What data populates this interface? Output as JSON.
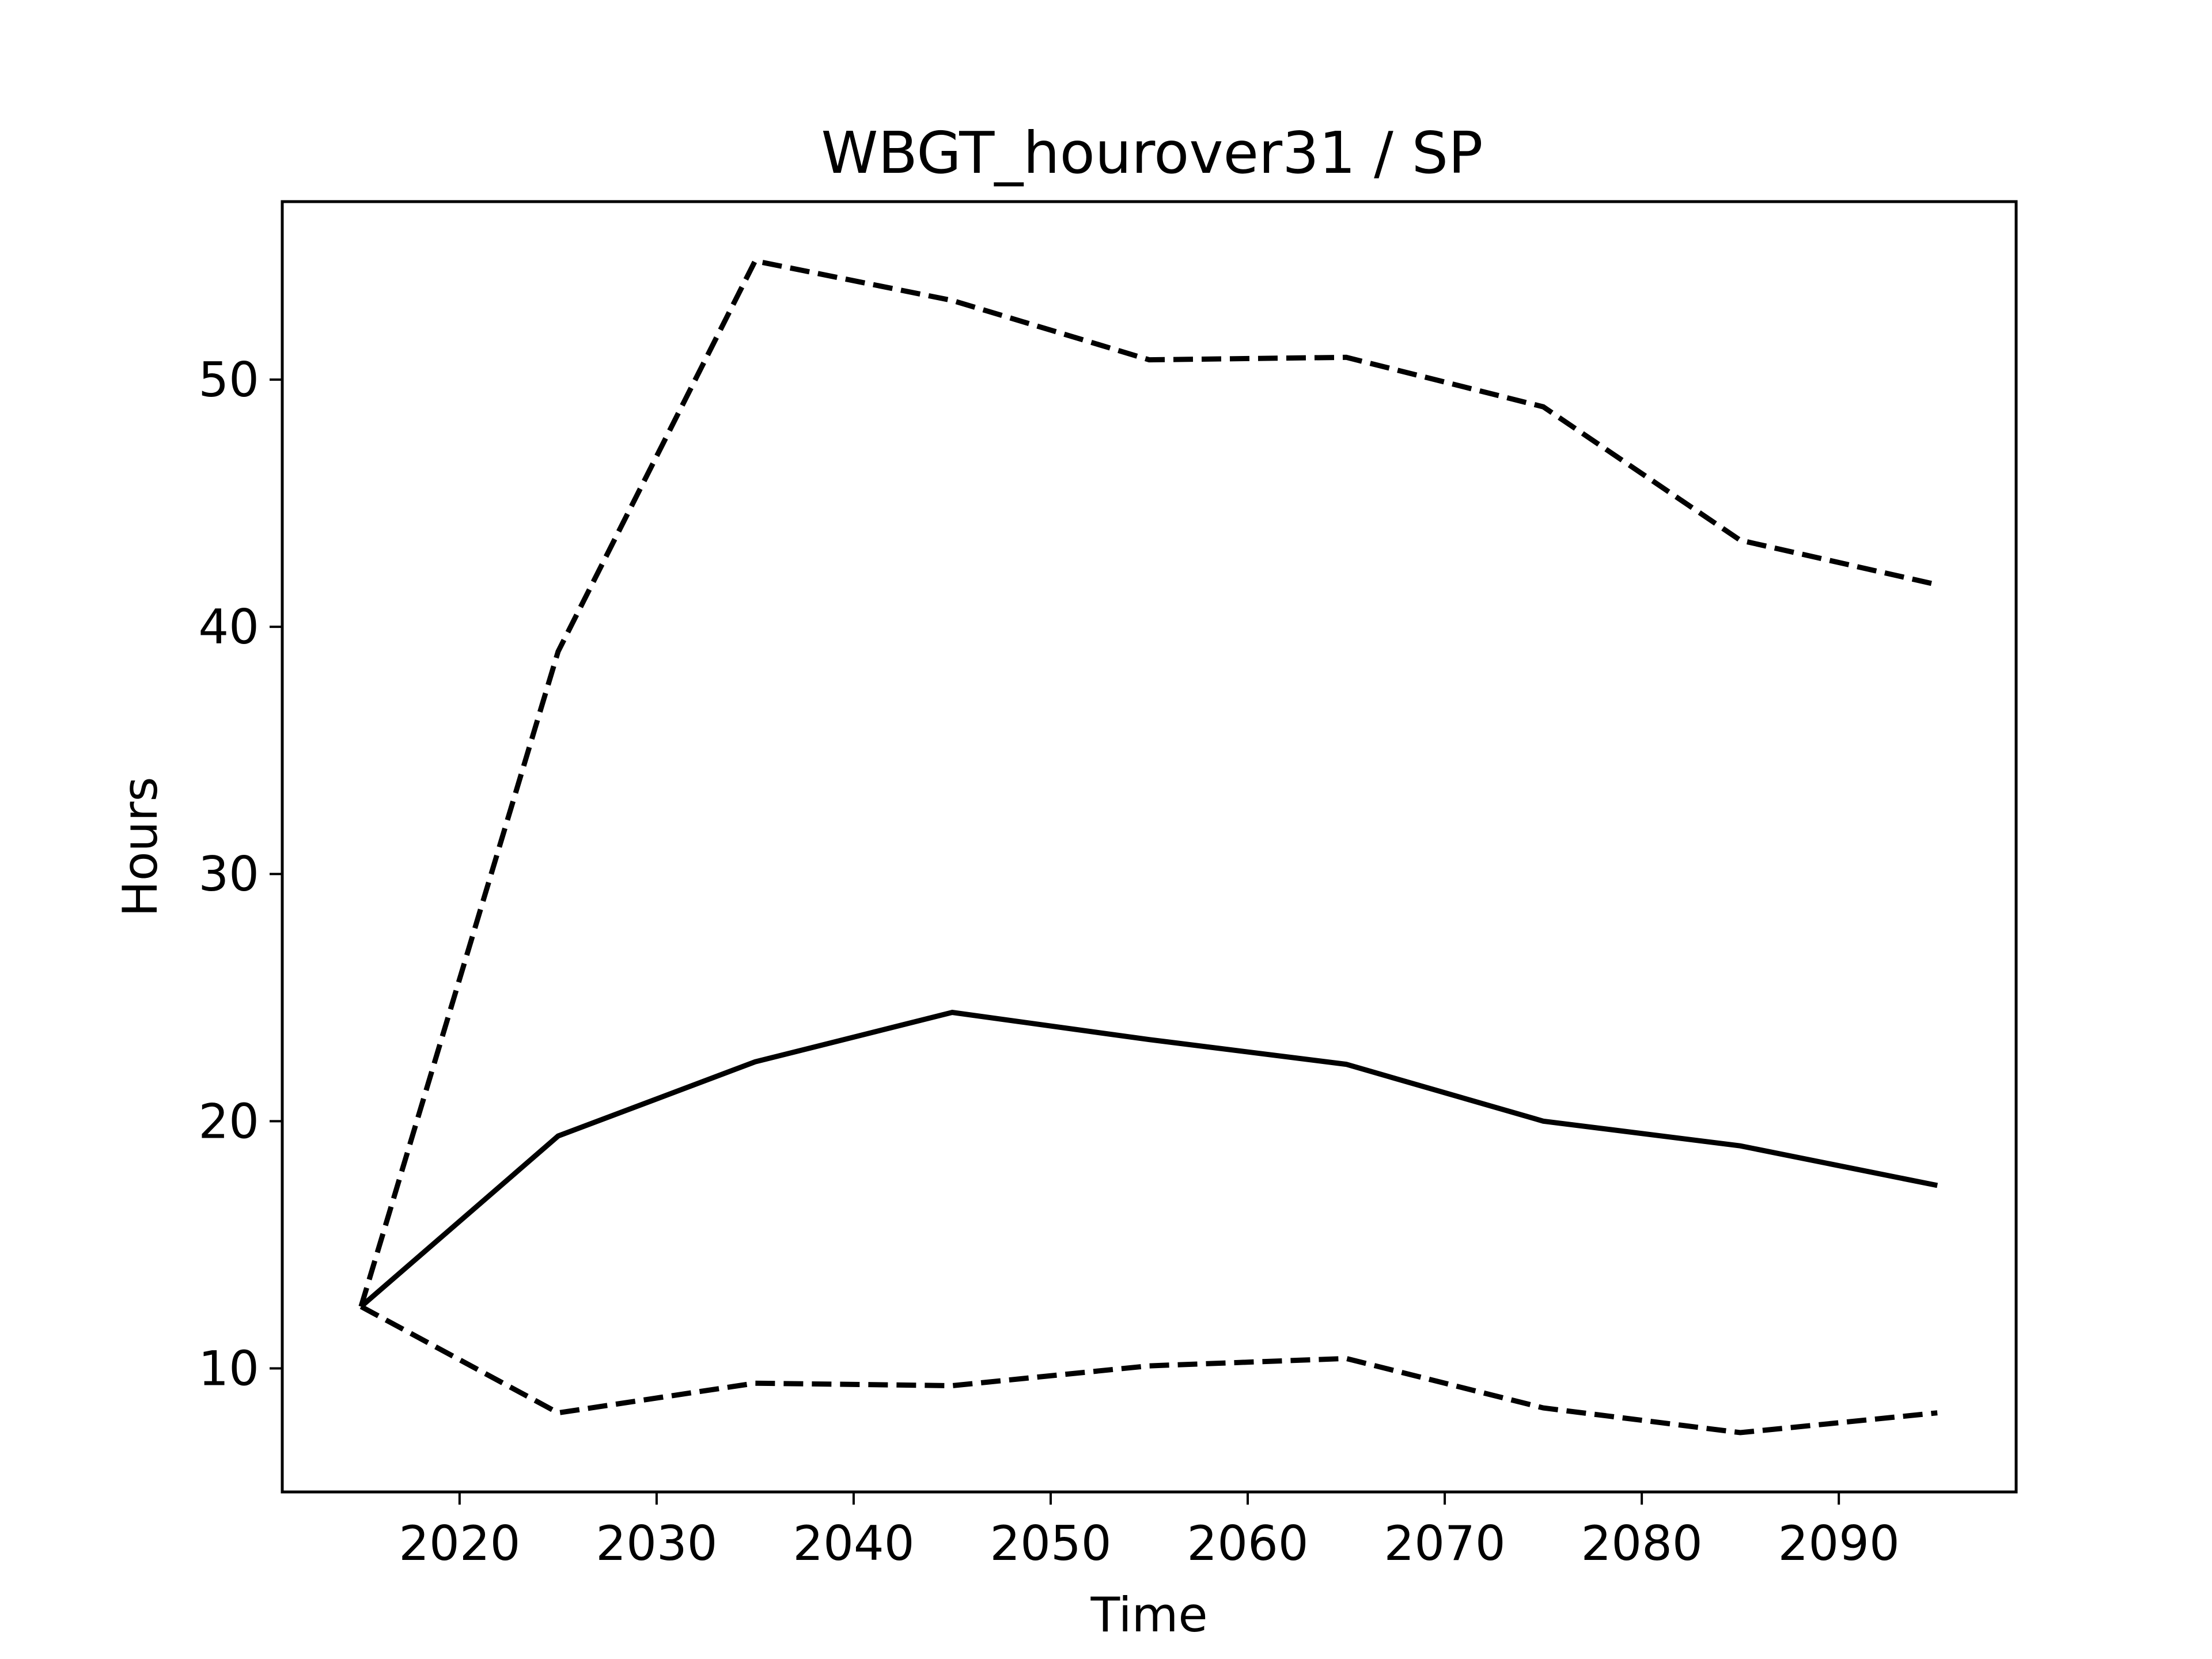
{
  "chart_data": {
    "type": "line",
    "title": "WBGT_hourover31 / SP",
    "xlabel": "Time",
    "ylabel": "Hours",
    "xlim": [
      2011,
      2099
    ],
    "ylim": [
      5,
      57.2
    ],
    "xticks": [
      2020,
      2030,
      2040,
      2050,
      2060,
      2070,
      2080,
      2090
    ],
    "yticks": [
      10,
      20,
      30,
      40,
      50
    ],
    "grid": false,
    "legend": false,
    "x": [
      2015,
      2025,
      2035,
      2045,
      2055,
      2065,
      2075,
      2085,
      2095
    ],
    "series": [
      {
        "style": "dashed",
        "color": "#000000",
        "values": [
          12.5,
          39.0,
          54.8,
          53.2,
          50.8,
          50.9,
          48.9,
          43.5,
          41.7
        ]
      },
      {
        "style": "solid",
        "color": "#000000",
        "values": [
          12.5,
          19.4,
          22.4,
          24.4,
          23.3,
          22.3,
          20.0,
          19.0,
          17.4
        ]
      },
      {
        "style": "dashed",
        "color": "#000000",
        "values": [
          12.5,
          8.2,
          9.4,
          9.3,
          10.1,
          10.4,
          8.4,
          7.4,
          8.2
        ]
      }
    ]
  }
}
